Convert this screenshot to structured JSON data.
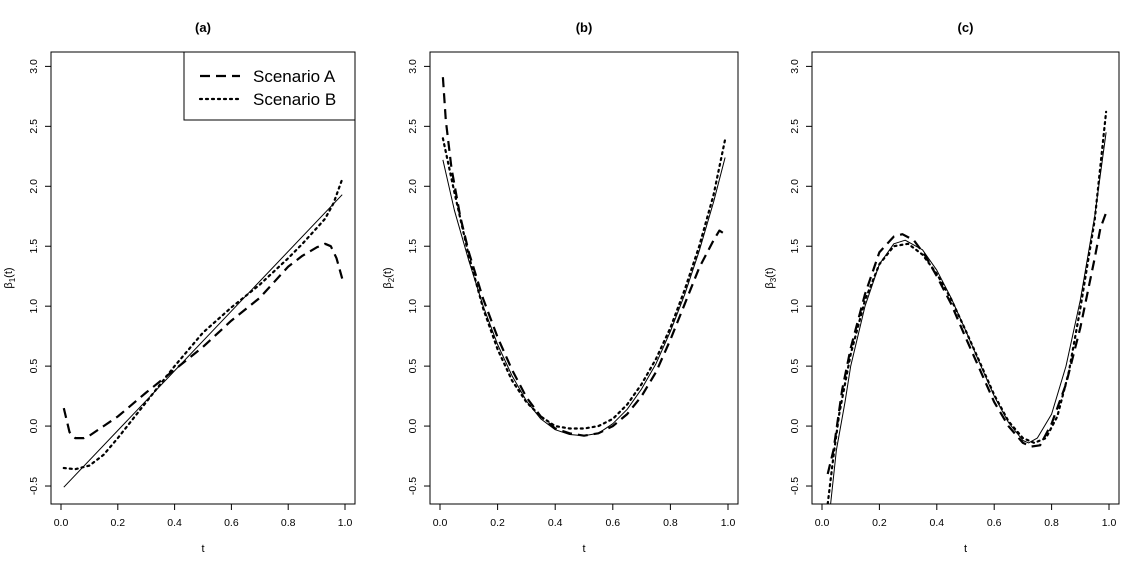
{
  "chart_data": [
    {
      "type": "line",
      "title": "(a)",
      "xlabel": "t",
      "ylabel_symbol": "β",
      "ylabel_sub": "1",
      "ylabel_tail": "(t)",
      "xlim": [
        0,
        1
      ],
      "ylim": [
        -0.65,
        3.12
      ],
      "xticks": [
        0.0,
        0.2,
        0.4,
        0.6,
        0.8,
        1.0
      ],
      "xtick_labels": [
        "0.0",
        "0.2",
        "0.4",
        "0.6",
        "0.8",
        "1.0"
      ],
      "yticks": [
        -0.5,
        0.0,
        0.5,
        1.0,
        1.5,
        2.0,
        2.5,
        3.0
      ],
      "ytick_labels": [
        "-0.5",
        "0.0",
        "0.5",
        "1.0",
        "1.5",
        "2.0",
        "2.5",
        "3.0"
      ],
      "legend": {
        "position": "top-right",
        "entries": [
          {
            "label": "Scenario A",
            "style": "dashed"
          },
          {
            "label": "Scenario B",
            "style": "dotted"
          }
        ]
      },
      "series": [
        {
          "style": "solid",
          "x": [
            0.01,
            0.99
          ],
          "y": [
            -0.51,
            1.93
          ]
        },
        {
          "name": "Scenario A",
          "style": "dashed",
          "x": [
            0.01,
            0.03,
            0.05,
            0.08,
            0.1,
            0.15,
            0.2,
            0.3,
            0.4,
            0.5,
            0.6,
            0.7,
            0.8,
            0.85,
            0.9,
            0.93,
            0.95,
            0.97,
            0.99
          ],
          "y": [
            0.15,
            -0.05,
            -0.1,
            -0.1,
            -0.08,
            0.0,
            0.08,
            0.28,
            0.47,
            0.66,
            0.88,
            1.07,
            1.33,
            1.42,
            1.49,
            1.52,
            1.5,
            1.4,
            1.23
          ]
        },
        {
          "name": "Scenario B",
          "style": "dotted",
          "x": [
            0.01,
            0.05,
            0.1,
            0.15,
            0.2,
            0.3,
            0.4,
            0.5,
            0.6,
            0.7,
            0.8,
            0.85,
            0.9,
            0.93,
            0.96,
            0.99
          ],
          "y": [
            -0.35,
            -0.36,
            -0.33,
            -0.24,
            -0.1,
            0.2,
            0.5,
            0.78,
            0.99,
            1.18,
            1.4,
            1.52,
            1.65,
            1.73,
            1.86,
            2.06
          ]
        }
      ]
    },
    {
      "type": "line",
      "title": "(b)",
      "xlabel": "t",
      "ylabel_symbol": "β",
      "ylabel_sub": "2",
      "ylabel_tail": "(t)",
      "xlim": [
        0,
        1
      ],
      "ylim": [
        -0.65,
        3.12
      ],
      "xticks": [
        0.0,
        0.2,
        0.4,
        0.6,
        0.8,
        1.0
      ],
      "xtick_labels": [
        "0.0",
        "0.2",
        "0.4",
        "0.6",
        "0.8",
        "1.0"
      ],
      "yticks": [
        -0.5,
        0.0,
        0.5,
        1.0,
        1.5,
        2.0,
        2.5,
        3.0
      ],
      "ytick_labels": [
        "-0.5",
        "0.0",
        "0.5",
        "1.0",
        "1.5",
        "2.0",
        "2.5",
        "3.0"
      ],
      "series": [
        {
          "style": "solid",
          "x": [
            0.01,
            0.05,
            0.1,
            0.15,
            0.2,
            0.25,
            0.3,
            0.35,
            0.4,
            0.45,
            0.5,
            0.55,
            0.6,
            0.65,
            0.7,
            0.75,
            0.8,
            0.85,
            0.9,
            0.95,
            0.99
          ],
          "y": [
            2.22,
            1.8,
            1.38,
            1.0,
            0.68,
            0.42,
            0.21,
            0.06,
            -0.03,
            -0.07,
            -0.08,
            -0.06,
            0.02,
            0.14,
            0.31,
            0.52,
            0.79,
            1.1,
            1.46,
            1.87,
            2.24
          ]
        },
        {
          "name": "Scenario A",
          "style": "dashed",
          "x": [
            0.01,
            0.02,
            0.04,
            0.07,
            0.1,
            0.15,
            0.2,
            0.25,
            0.3,
            0.35,
            0.4,
            0.45,
            0.5,
            0.55,
            0.6,
            0.65,
            0.7,
            0.75,
            0.8,
            0.85,
            0.9,
            0.95,
            0.97,
            0.99
          ],
          "y": [
            2.91,
            2.55,
            2.15,
            1.75,
            1.45,
            1.06,
            0.74,
            0.47,
            0.24,
            0.08,
            -0.02,
            -0.06,
            -0.08,
            -0.06,
            0.0,
            0.1,
            0.25,
            0.45,
            0.72,
            1.02,
            1.32,
            1.55,
            1.63,
            1.6
          ]
        },
        {
          "name": "Scenario B",
          "style": "dotted",
          "x": [
            0.01,
            0.05,
            0.1,
            0.15,
            0.2,
            0.25,
            0.3,
            0.35,
            0.4,
            0.45,
            0.5,
            0.55,
            0.6,
            0.65,
            0.7,
            0.75,
            0.8,
            0.85,
            0.9,
            0.95,
            0.99
          ],
          "y": [
            2.4,
            1.95,
            1.42,
            0.98,
            0.64,
            0.38,
            0.2,
            0.08,
            0.0,
            -0.02,
            -0.02,
            0.0,
            0.06,
            0.18,
            0.35,
            0.56,
            0.82,
            1.14,
            1.5,
            1.93,
            2.39
          ]
        }
      ]
    },
    {
      "type": "line",
      "title": "(c)",
      "xlabel": "t",
      "ylabel_symbol": "β",
      "ylabel_sub": "3",
      "ylabel_tail": "(t)",
      "xlim": [
        0,
        1
      ],
      "ylim": [
        -0.65,
        3.12
      ],
      "xticks": [
        0.0,
        0.2,
        0.4,
        0.6,
        0.8,
        1.0
      ],
      "xtick_labels": [
        "0.0",
        "0.2",
        "0.4",
        "0.6",
        "0.8",
        "1.0"
      ],
      "yticks": [
        -0.5,
        0.0,
        0.5,
        1.0,
        1.5,
        2.0,
        2.5,
        3.0
      ],
      "ytick_labels": [
        "-0.5",
        "0.0",
        "0.5",
        "1.0",
        "1.5",
        "2.0",
        "2.5",
        "3.0"
      ],
      "series": [
        {
          "style": "solid",
          "x": [
            0.03,
            0.05,
            0.08,
            0.1,
            0.15,
            0.2,
            0.25,
            0.29,
            0.35,
            0.4,
            0.45,
            0.5,
            0.55,
            0.6,
            0.65,
            0.7,
            0.72,
            0.75,
            0.8,
            0.85,
            0.9,
            0.95,
            0.99
          ],
          "y": [
            -0.65,
            -0.2,
            0.2,
            0.5,
            1.0,
            1.35,
            1.52,
            1.55,
            1.47,
            1.3,
            1.07,
            0.8,
            0.52,
            0.25,
            0.03,
            -0.12,
            -0.14,
            -0.1,
            0.1,
            0.5,
            1.05,
            1.75,
            2.45
          ]
        },
        {
          "name": "Scenario A",
          "style": "dashed",
          "x": [
            0.02,
            0.04,
            0.07,
            0.1,
            0.15,
            0.2,
            0.25,
            0.28,
            0.32,
            0.36,
            0.4,
            0.45,
            0.5,
            0.55,
            0.6,
            0.65,
            0.7,
            0.73,
            0.76,
            0.8,
            0.85,
            0.9,
            0.95,
            0.97,
            0.99
          ],
          "y": [
            -0.4,
            -0.2,
            0.3,
            0.65,
            1.1,
            1.45,
            1.58,
            1.6,
            1.55,
            1.42,
            1.25,
            1.02,
            0.74,
            0.47,
            0.2,
            0.0,
            -0.14,
            -0.17,
            -0.16,
            0.02,
            0.35,
            0.82,
            1.4,
            1.65,
            1.78
          ]
        },
        {
          "name": "Scenario B",
          "style": "dotted",
          "x": [
            0.02,
            0.04,
            0.06,
            0.1,
            0.15,
            0.2,
            0.25,
            0.3,
            0.35,
            0.4,
            0.45,
            0.5,
            0.55,
            0.6,
            0.65,
            0.7,
            0.74,
            0.78,
            0.82,
            0.86,
            0.9,
            0.95,
            0.99
          ],
          "y": [
            -0.65,
            -0.25,
            0.1,
            0.6,
            1.05,
            1.35,
            1.5,
            1.52,
            1.43,
            1.27,
            1.06,
            0.8,
            0.53,
            0.26,
            0.04,
            -0.1,
            -0.14,
            -0.1,
            0.08,
            0.45,
            0.98,
            1.72,
            2.62
          ]
        }
      ]
    }
  ]
}
